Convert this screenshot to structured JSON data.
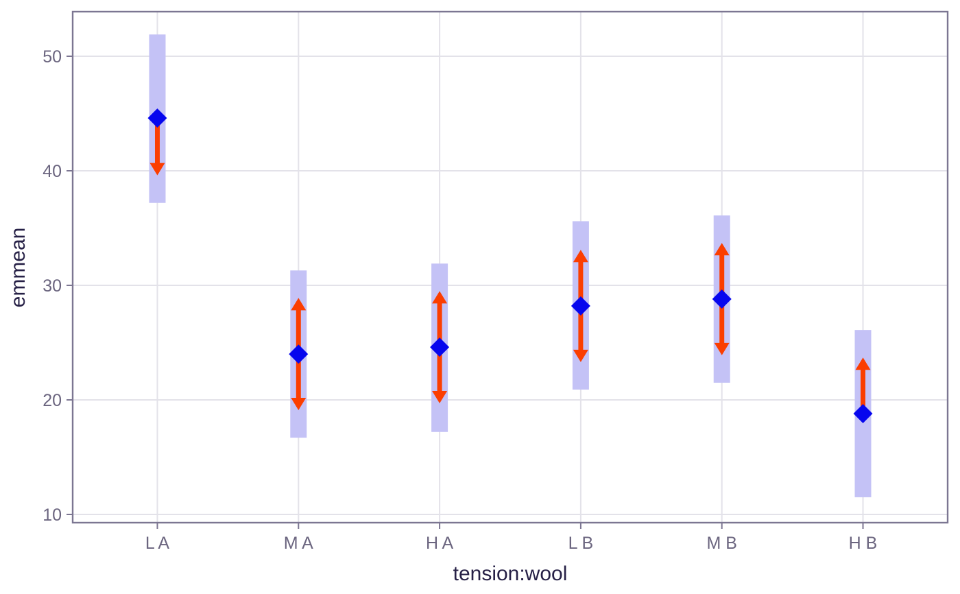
{
  "chart_data": {
    "type": "scatter",
    "subtype": "estimated-marginal-means-with-comparison-arrows",
    "title": "",
    "xlabel": "tension:wool",
    "ylabel": "emmean",
    "categories": [
      "L A",
      "M A",
      "H A",
      "L B",
      "M B",
      "H B"
    ],
    "series": [
      {
        "name": "emmean",
        "values": [
          44.6,
          24.0,
          24.6,
          28.2,
          28.8,
          18.8
        ]
      },
      {
        "name": "confidence_interval_lower",
        "values": [
          37.2,
          16.7,
          17.2,
          20.9,
          21.5,
          11.5
        ]
      },
      {
        "name": "confidence_interval_upper",
        "values": [
          51.9,
          31.3,
          31.9,
          35.6,
          36.1,
          26.1
        ]
      },
      {
        "name": "comparison_arrow_lower",
        "values": [
          39.6,
          19.1,
          19.7,
          23.3,
          23.9,
          null
        ]
      },
      {
        "name": "comparison_arrow_upper",
        "values": [
          null,
          28.9,
          29.5,
          33.1,
          33.7,
          23.7
        ]
      }
    ],
    "y_ticks": [
      10,
      20,
      30,
      40,
      50
    ],
    "ylim": [
      9.3,
      53.9
    ],
    "grid": true,
    "legend_position": "none"
  },
  "colors": {
    "ci_bar": "#c4c2f6",
    "mean_point": "#0606ee",
    "comparison_arrow": "#fb3e01",
    "gridline": "#e3e2e9",
    "panel_border": "#7c7692",
    "tick_label": "#6b657f",
    "axis_title": "#262046",
    "background": "#ffffff"
  }
}
